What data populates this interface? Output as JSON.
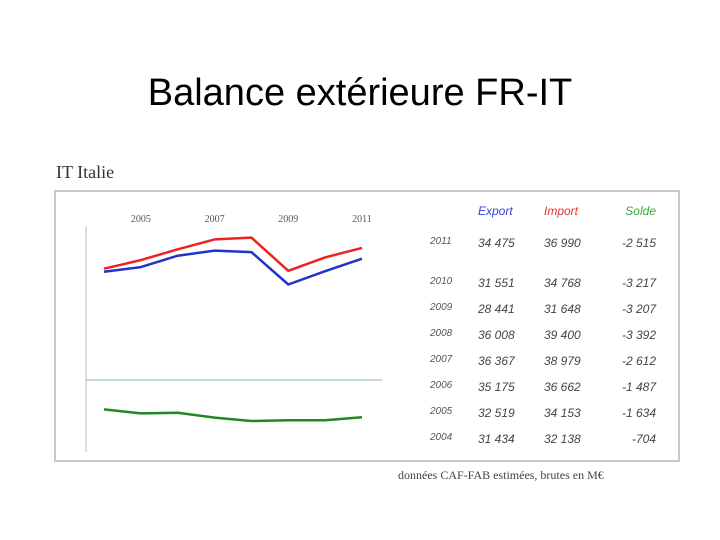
{
  "slide_title": "Balance extérieure FR-IT",
  "figure_title": "IT Italie",
  "caption": "données CAF-FAB estimées, brutes en M€",
  "table": {
    "headers": {
      "export": "Export",
      "import": "Import",
      "solde": "Solde"
    },
    "rows": [
      {
        "year": "2011",
        "export": "34 475",
        "import": "36 990",
        "solde": "-2 515"
      },
      {
        "year": "2010",
        "export": "31 551",
        "import": "34 768",
        "solde": "-3 217"
      },
      {
        "year": "2009",
        "export": "28 441",
        "import": "31 648",
        "solde": "-3 207"
      },
      {
        "year": "2008",
        "export": "36 008",
        "import": "39 400",
        "solde": "-3 392"
      },
      {
        "year": "2007",
        "export": "36 367",
        "import": "38 979",
        "solde": "-2 612"
      },
      {
        "year": "2006",
        "export": "35 175",
        "import": "36 662",
        "solde": "-1 487"
      },
      {
        "year": "2005",
        "export": "32 519",
        "import": "34 153",
        "solde": "-1 634"
      },
      {
        "year": "2004",
        "export": "31 434",
        "import": "32 138",
        "solde": "-704"
      }
    ]
  },
  "colors": {
    "export": "#2233cc",
    "import": "#ee2222",
    "solde": "#228822",
    "zero_line": "#88bb88",
    "axis": "#bbbbbb"
  },
  "chart_data": {
    "type": "line",
    "x": [
      2004,
      2005,
      2006,
      2007,
      2008,
      2009,
      2010,
      2011
    ],
    "tick_labels": [
      "2005",
      "2007",
      "2009",
      "2011"
    ],
    "series": [
      {
        "key": "export",
        "values": [
          31434,
          32519,
          35175,
          36367,
          36008,
          28441,
          31551,
          34475
        ]
      },
      {
        "key": "import",
        "values": [
          32138,
          34153,
          36662,
          38979,
          39400,
          31648,
          34768,
          36990
        ]
      },
      {
        "key": "solde",
        "values": [
          -704,
          -1634,
          -1487,
          -2612,
          -3392,
          -3207,
          -3217,
          -2515
        ]
      }
    ],
    "xlabel": "",
    "ylabel": "",
    "grid": false
  }
}
